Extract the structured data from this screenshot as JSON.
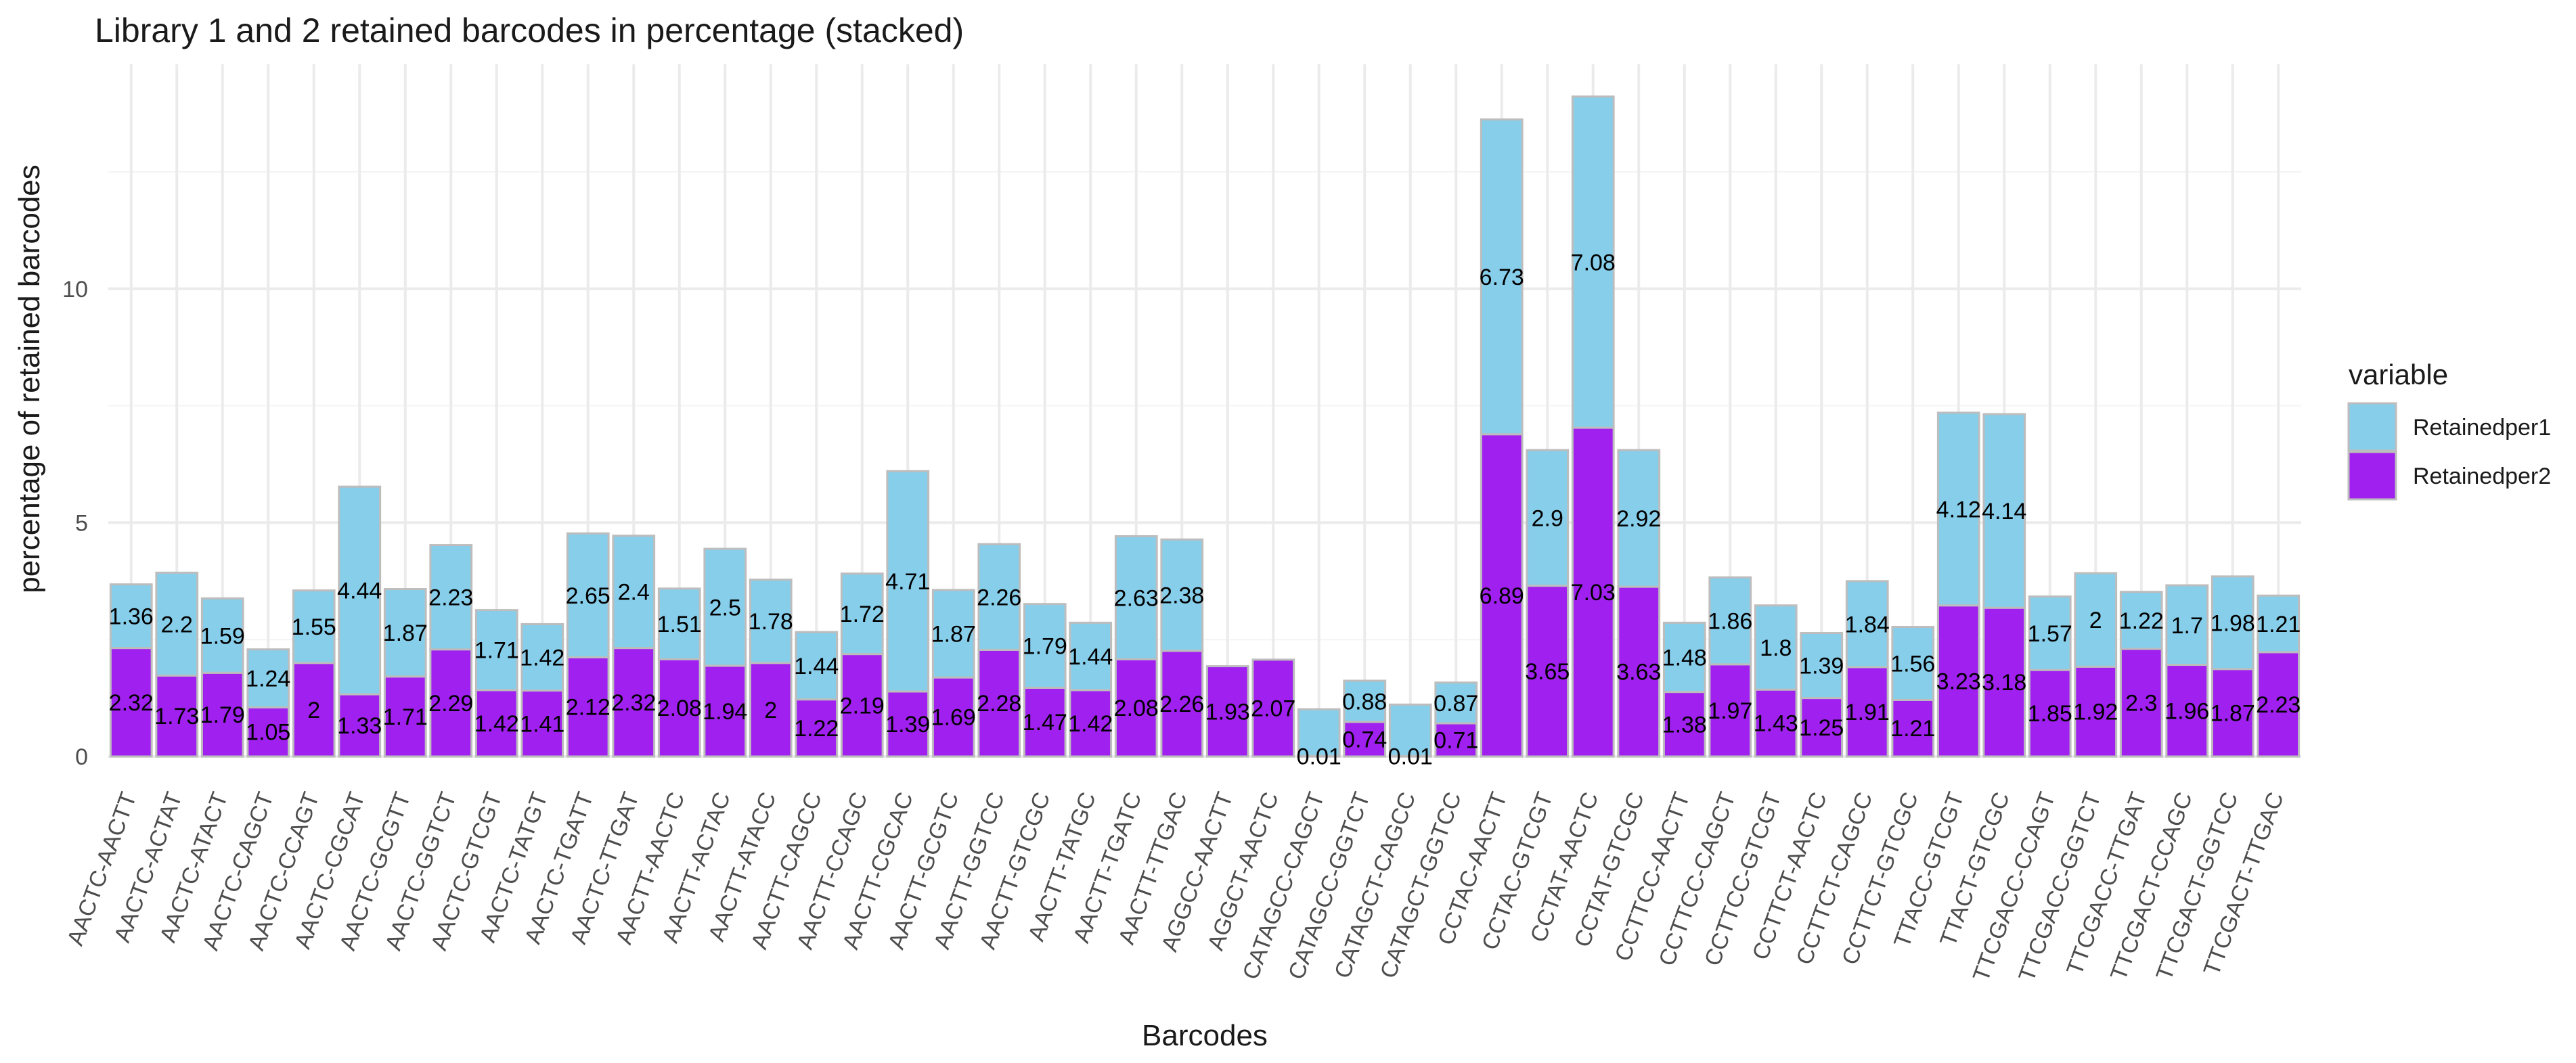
{
  "chart_data": {
    "type": "bar",
    "stacked": true,
    "title": "Library 1 and 2 retained barcodes in percentage (stacked)",
    "xlabel": "Barcodes",
    "ylabel": "percentage of retained barcodes",
    "yticks": [
      0,
      5,
      10
    ],
    "ylim": [
      0,
      14.8
    ],
    "grid": true,
    "legend": {
      "title": "variable",
      "position": "right"
    },
    "categories": [
      "AACTC-AACTT",
      "AACTC-ACTAT",
      "AACTC-ATACT",
      "AACTC-CAGCT",
      "AACTC-CCAGT",
      "AACTC-CGCAT",
      "AACTC-GCGTT",
      "AACTC-GGTCT",
      "AACTC-GTCGT",
      "AACTC-TATGT",
      "AACTC-TGATT",
      "AACTC-TTGAT",
      "AACTT-AACTC",
      "AACTT-ACTAC",
      "AACTT-ATACC",
      "AACTT-CAGCC",
      "AACTT-CCAGC",
      "AACTT-CGCAC",
      "AACTT-GCGTC",
      "AACTT-GGTCC",
      "AACTT-GTCGC",
      "AACTT-TATGC",
      "AACTT-TGATC",
      "AACTT-TTGAC",
      "AGGCC-AACTT",
      "AGGCT-AACTC",
      "CATAGCC-CAGCT",
      "CATAGCC-GGTCT",
      "CATAGCT-CAGCC",
      "CATAGCT-GGTCC",
      "CCTAC-AACTT",
      "CCTAC-GTCGT",
      "CCTAT-AACTC",
      "CCTAT-GTCGC",
      "CCTTCC-AACTT",
      "CCTTCC-CAGCT",
      "CCTTCC-GTCGT",
      "CCTTCT-AACTC",
      "CCTTCT-CAGCC",
      "CCTTCT-GTCGC",
      "TTACC-GTCGT",
      "TTACT-GTCGC",
      "TTCGACC-CCAGT",
      "TTCGACC-GGTCT",
      "TTCGACC-TTGAT",
      "TTCGACT-CCAGC",
      "TTCGACT-GGTCC",
      "TTCGACT-TTGAC"
    ],
    "series": [
      {
        "name": "Retainedper2",
        "color": "#a020f0",
        "values": [
          2.32,
          1.73,
          1.79,
          1.05,
          2,
          1.33,
          1.71,
          2.29,
          1.42,
          1.41,
          2.12,
          2.32,
          2.08,
          1.94,
          2,
          1.22,
          2.19,
          1.39,
          1.69,
          2.28,
          1.47,
          1.42,
          2.08,
          2.26,
          1.93,
          2.07,
          0.01,
          0.74,
          0.01,
          0.71,
          6.89,
          3.65,
          7.03,
          3.63,
          1.38,
          1.97,
          1.43,
          1.25,
          1.91,
          1.21,
          3.23,
          3.18,
          1.85,
          1.92,
          2.3,
          1.96,
          1.87,
          2.23
        ],
        "labels": [
          "2.32",
          "1.73",
          "1.79",
          "1.05",
          "2",
          "1.33",
          "1.71",
          "2.29",
          "1.42",
          "1.41",
          "2.12",
          "2.32",
          "2.08",
          "1.94",
          "2",
          "1.22",
          "2.19",
          "1.39",
          "1.69",
          "2.28",
          "1.47",
          "1.42",
          "2.08",
          "2.26",
          "1.93",
          "2.07",
          "0.01",
          "0.74",
          "0.01",
          "0.71",
          "6.89",
          "3.65",
          "7.03",
          "3.63",
          "1.38",
          "1.97",
          "1.43",
          "1.25",
          "1.91",
          "1.21",
          "3.23",
          "3.18",
          "1.85",
          "1.92",
          "2.3",
          "1.96",
          "1.87",
          "2.23"
        ]
      },
      {
        "name": "Retainedper1",
        "color": "#87ceeb",
        "values": [
          1.36,
          2.2,
          1.59,
          1.24,
          1.55,
          4.44,
          1.87,
          2.23,
          1.71,
          1.42,
          2.65,
          2.4,
          1.51,
          2.5,
          1.78,
          1.44,
          1.72,
          4.71,
          1.87,
          2.26,
          1.79,
          1.44,
          2.63,
          2.38,
          0,
          0,
          1,
          0.88,
          1.1,
          0.87,
          6.73,
          2.9,
          7.08,
          2.92,
          1.48,
          1.86,
          1.8,
          1.39,
          1.84,
          1.56,
          4.12,
          4.14,
          1.57,
          2,
          1.22,
          1.7,
          1.98,
          1.21
        ],
        "labels": [
          "1.36",
          "2.2",
          "1.59",
          "1.24",
          "1.55",
          "4.44",
          "1.87",
          "2.23",
          "1.71",
          "1.42",
          "2.65",
          "2.4",
          "1.51",
          "2.5",
          "1.78",
          "1.44",
          "1.72",
          "4.71",
          "1.87",
          "2.26",
          "1.79",
          "1.44",
          "2.63",
          "2.38",
          "",
          "",
          "",
          "0.88",
          "",
          "0.87",
          "6.73",
          "2.9",
          "7.08",
          "2.92",
          "1.48",
          "1.86",
          "1.8",
          "1.39",
          "1.84",
          "1.56",
          "4.12",
          "4.14",
          "1.57",
          "2",
          "1.22",
          "1.7",
          "1.98",
          "1.21"
        ]
      }
    ]
  }
}
